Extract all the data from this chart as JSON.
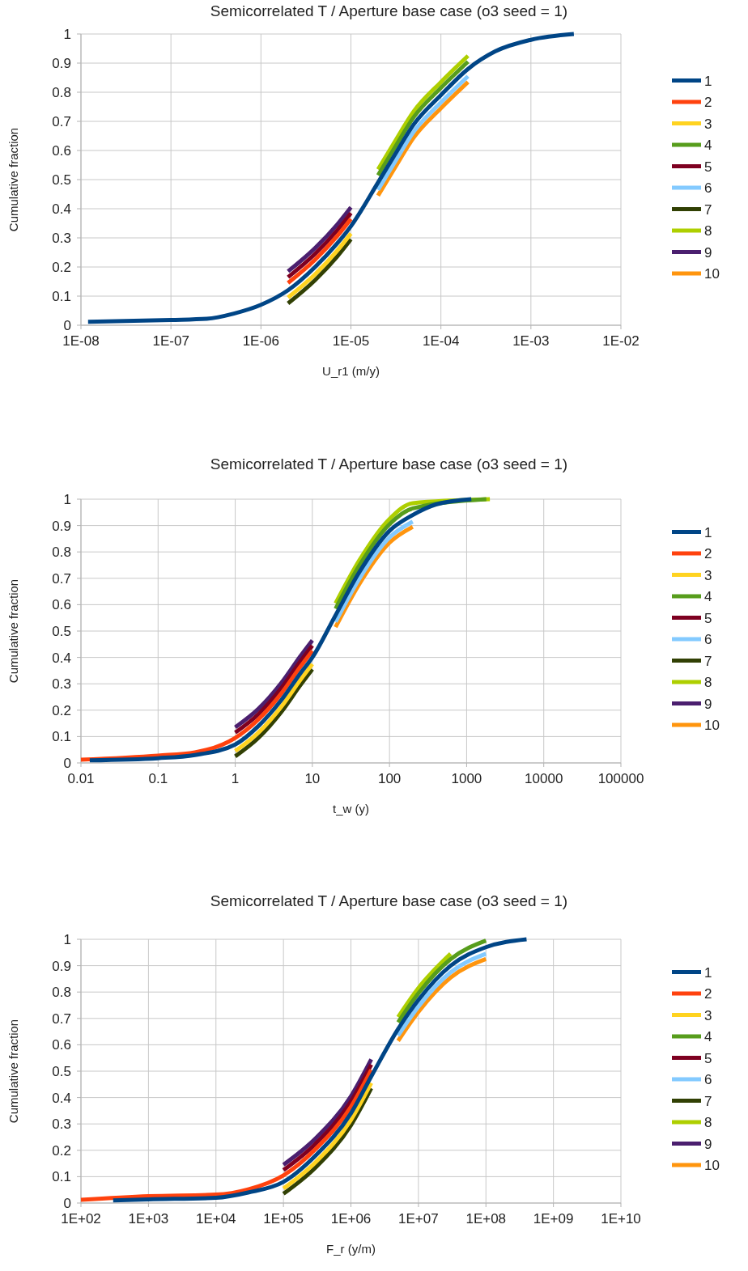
{
  "chart_data": [
    {
      "type": "line",
      "title": "Semicorrelated T / Aperture base case (o3 seed = 1)",
      "xlabel": "U_r1 (m/y)",
      "ylabel": "Cumulative fraction",
      "log": "x",
      "grid": true,
      "legend": "right",
      "marker": "none",
      "line_style": "solid",
      "xlim": [
        1e-08,
        0.01
      ],
      "xticks": [
        {
          "value": 1e-08,
          "label": "1E-08"
        },
        {
          "value": 1e-07,
          "label": "1E-07"
        },
        {
          "value": 1e-06,
          "label": "1E-06"
        },
        {
          "value": 1e-05,
          "label": "1E-05"
        },
        {
          "value": 0.0001,
          "label": "1E-04"
        },
        {
          "value": 0.001,
          "label": "1E-03"
        },
        {
          "value": 0.01,
          "label": "1E-02"
        }
      ],
      "ylim": [
        0,
        1
      ],
      "yticks": [
        0,
        0.1,
        0.2,
        0.3,
        0.4,
        0.5,
        0.6,
        0.7,
        0.8,
        0.9,
        1
      ],
      "series": [
        {
          "name": "1",
          "color": "#004586",
          "x": [
            1.2e-08,
            1e-07,
            2.5e-07,
            5e-07,
            1e-06,
            2e-06,
            4e-06,
            7e-06,
            1e-05,
            2e-05,
            3e-05,
            5e-05,
            0.0001,
            0.0002,
            0.0004,
            0.001,
            0.003
          ],
          "values": [
            0.012,
            0.018,
            0.022,
            0.04,
            0.07,
            0.12,
            0.2,
            0.28,
            0.34,
            0.49,
            0.58,
            0.69,
            0.79,
            0.88,
            0.94,
            0.98,
            1
          ]
        },
        {
          "name": "2",
          "color": "#ff420e",
          "x": [
            2e-06,
            4e-06,
            7e-06,
            1e-05
          ],
          "values": [
            0.145,
            0.225,
            0.305,
            0.365
          ]
        },
        {
          "name": "3",
          "color": "#ffd320",
          "x": [
            2e-06,
            4e-06,
            7e-06,
            1e-05
          ],
          "values": [
            0.095,
            0.175,
            0.255,
            0.315
          ]
        },
        {
          "name": "4",
          "color": "#579d1c",
          "x": [
            2e-05,
            3e-05,
            5e-05,
            0.0001,
            0.0002
          ],
          "values": [
            0.515,
            0.605,
            0.715,
            0.815,
            0.905
          ]
        },
        {
          "name": "5",
          "color": "#7e0021",
          "x": [
            2e-06,
            4e-06,
            7e-06,
            1e-05
          ],
          "values": [
            0.165,
            0.245,
            0.325,
            0.385
          ]
        },
        {
          "name": "6",
          "color": "#83caff",
          "x": [
            2e-05,
            3e-05,
            5e-05,
            0.0001,
            0.0002
          ],
          "values": [
            0.465,
            0.555,
            0.665,
            0.765,
            0.855
          ]
        },
        {
          "name": "7",
          "color": "#314004",
          "x": [
            2e-06,
            4e-06,
            7e-06,
            1e-05
          ],
          "values": [
            0.075,
            0.155,
            0.235,
            0.295
          ]
        },
        {
          "name": "8",
          "color": "#aecf00",
          "x": [
            2e-05,
            3e-05,
            5e-05,
            0.0001,
            0.0002
          ],
          "values": [
            0.535,
            0.625,
            0.735,
            0.835,
            0.925
          ]
        },
        {
          "name": "9",
          "color": "#4b1f6f",
          "x": [
            2e-06,
            4e-06,
            7e-06,
            1e-05
          ],
          "values": [
            0.185,
            0.265,
            0.345,
            0.405
          ]
        },
        {
          "name": "10",
          "color": "#ff950e",
          "x": [
            2e-05,
            3e-05,
            5e-05,
            0.0001,
            0.0002
          ],
          "values": [
            0.445,
            0.535,
            0.645,
            0.745,
            0.835
          ]
        }
      ]
    },
    {
      "type": "line",
      "title": "Semicorrelated T / Aperture base case (o3 seed = 1)",
      "xlabel": "t_w (y)",
      "ylabel": "Cumulative fraction",
      "log": "x",
      "grid": true,
      "legend": "right",
      "marker": "none",
      "line_style": "solid",
      "xlim": [
        0.01,
        100000
      ],
      "xticks": [
        0.01,
        0.1,
        1,
        10,
        100,
        1000,
        10000,
        100000
      ],
      "ylim": [
        0,
        1
      ],
      "yticks": [
        0,
        0.1,
        0.2,
        0.3,
        0.4,
        0.5,
        0.6,
        0.7,
        0.8,
        0.9,
        1
      ],
      "series": [
        {
          "name": "1",
          "color": "#004586",
          "x": [
            0.013,
            0.1,
            0.3,
            1,
            2,
            4,
            7,
            10,
            20,
            40,
            100,
            200,
            400,
            1150
          ],
          "values": [
            0.01,
            0.018,
            0.03,
            0.07,
            0.14,
            0.24,
            0.34,
            0.4,
            0.56,
            0.72,
            0.88,
            0.94,
            0.98,
            1
          ]
        },
        {
          "name": "2",
          "color": "#ff420e",
          "x": [
            0.01,
            0.1,
            0.3,
            1,
            2,
            4,
            7,
            10
          ],
          "values": [
            0.012,
            0.028,
            0.04,
            0.095,
            0.165,
            0.265,
            0.365,
            0.425
          ]
        },
        {
          "name": "3",
          "color": "#ffd320",
          "x": [
            1,
            2,
            4,
            7,
            10
          ],
          "values": [
            0.045,
            0.115,
            0.215,
            0.315,
            0.375
          ]
        },
        {
          "name": "4",
          "color": "#579d1c",
          "x": [
            20,
            40,
            100,
            200,
            1800
          ],
          "values": [
            0.585,
            0.745,
            0.905,
            0.965,
            1
          ]
        },
        {
          "name": "5",
          "color": "#7e0021",
          "x": [
            1,
            2,
            4,
            7,
            10
          ],
          "values": [
            0.115,
            0.185,
            0.285,
            0.385,
            0.445
          ]
        },
        {
          "name": "6",
          "color": "#83caff",
          "x": [
            20,
            40,
            100,
            200
          ],
          "values": [
            0.535,
            0.695,
            0.855,
            0.915
          ]
        },
        {
          "name": "7",
          "color": "#314004",
          "x": [
            1,
            2,
            4,
            7,
            10
          ],
          "values": [
            0.025,
            0.095,
            0.195,
            0.295,
            0.355
          ]
        },
        {
          "name": "8",
          "color": "#aecf00",
          "x": [
            20,
            40,
            100,
            200,
            2000
          ],
          "values": [
            0.605,
            0.765,
            0.925,
            0.985,
            1
          ]
        },
        {
          "name": "9",
          "color": "#4b1f6f",
          "x": [
            1,
            2,
            4,
            7,
            10
          ],
          "values": [
            0.135,
            0.205,
            0.305,
            0.405,
            0.465
          ]
        },
        {
          "name": "10",
          "color": "#ff950e",
          "x": [
            20,
            40,
            100,
            200
          ],
          "values": [
            0.515,
            0.675,
            0.835,
            0.895
          ]
        }
      ]
    },
    {
      "type": "line",
      "title": "Semicorrelated T / Aperture base case (o3 seed = 1)",
      "xlabel": "F_r (y/m)",
      "ylabel": "Cumulative fraction",
      "log": "x",
      "grid": true,
      "legend": "right",
      "marker": "none",
      "line_style": "solid",
      "xlim": [
        100,
        10000000000.0
      ],
      "xticks": [
        {
          "value": 100,
          "label": "1E+02"
        },
        {
          "value": 1000.0,
          "label": "1E+03"
        },
        {
          "value": 10000.0,
          "label": "1E+04"
        },
        {
          "value": 100000.0,
          "label": "1E+05"
        },
        {
          "value": 1000000.0,
          "label": "1E+06"
        },
        {
          "value": 10000000.0,
          "label": "1E+07"
        },
        {
          "value": 100000000.0,
          "label": "1E+08"
        },
        {
          "value": 1000000000.0,
          "label": "1E+09"
        },
        {
          "value": 10000000000.0,
          "label": "1E+10"
        }
      ],
      "ylim": [
        0,
        1
      ],
      "yticks": [
        0,
        0.1,
        0.2,
        0.3,
        0.4,
        0.5,
        0.6,
        0.7,
        0.8,
        0.9,
        1
      ],
      "series": [
        {
          "name": "1",
          "color": "#004586",
          "x": [
            300,
            1000.0,
            10000.0,
            30000.0,
            100000.0,
            300000.0,
            1000000.0,
            2000000.0,
            5000000.0,
            10000000.0,
            30000000.0,
            100000000.0,
            400000000.0
          ],
          "values": [
            0.01,
            0.014,
            0.02,
            0.04,
            0.08,
            0.18,
            0.34,
            0.48,
            0.66,
            0.77,
            0.9,
            0.97,
            1
          ]
        },
        {
          "name": "2",
          "color": "#ff420e",
          "x": [
            100,
            1000.0,
            10000.0,
            30000.0,
            100000.0,
            300000.0,
            1000000.0,
            2000000.0
          ],
          "values": [
            0.012,
            0.026,
            0.032,
            0.052,
            0.105,
            0.205,
            0.365,
            0.505
          ]
        },
        {
          "name": "3",
          "color": "#ffd320",
          "x": [
            100000.0,
            300000.0,
            1000000.0,
            2000000.0
          ],
          "values": [
            0.055,
            0.155,
            0.315,
            0.455
          ]
        },
        {
          "name": "4",
          "color": "#579d1c",
          "x": [
            5000000.0,
            10000000.0,
            30000000.0,
            100000000.0
          ],
          "values": [
            0.685,
            0.795,
            0.925,
            0.995
          ]
        },
        {
          "name": "5",
          "color": "#7e0021",
          "x": [
            100000.0,
            300000.0,
            1000000.0,
            2000000.0
          ],
          "values": [
            0.125,
            0.225,
            0.385,
            0.525
          ]
        },
        {
          "name": "6",
          "color": "#83caff",
          "x": [
            5000000.0,
            10000000.0,
            30000000.0,
            100000000.0
          ],
          "values": [
            0.635,
            0.745,
            0.875,
            0.945
          ]
        },
        {
          "name": "7",
          "color": "#314004",
          "x": [
            100000.0,
            300000.0,
            1000000.0,
            2000000.0
          ],
          "values": [
            0.035,
            0.135,
            0.295,
            0.435
          ]
        },
        {
          "name": "8",
          "color": "#aecf00",
          "x": [
            5000000.0,
            10000000.0,
            30000000.0
          ],
          "values": [
            0.705,
            0.815,
            0.945
          ]
        },
        {
          "name": "9",
          "color": "#4b1f6f",
          "x": [
            100000.0,
            300000.0,
            1000000.0,
            2000000.0
          ],
          "values": [
            0.145,
            0.245,
            0.405,
            0.545
          ]
        },
        {
          "name": "10",
          "color": "#ff950e",
          "x": [
            5000000.0,
            10000000.0,
            30000000.0,
            100000000.0
          ],
          "values": [
            0.615,
            0.725,
            0.855,
            0.925
          ]
        }
      ]
    }
  ]
}
